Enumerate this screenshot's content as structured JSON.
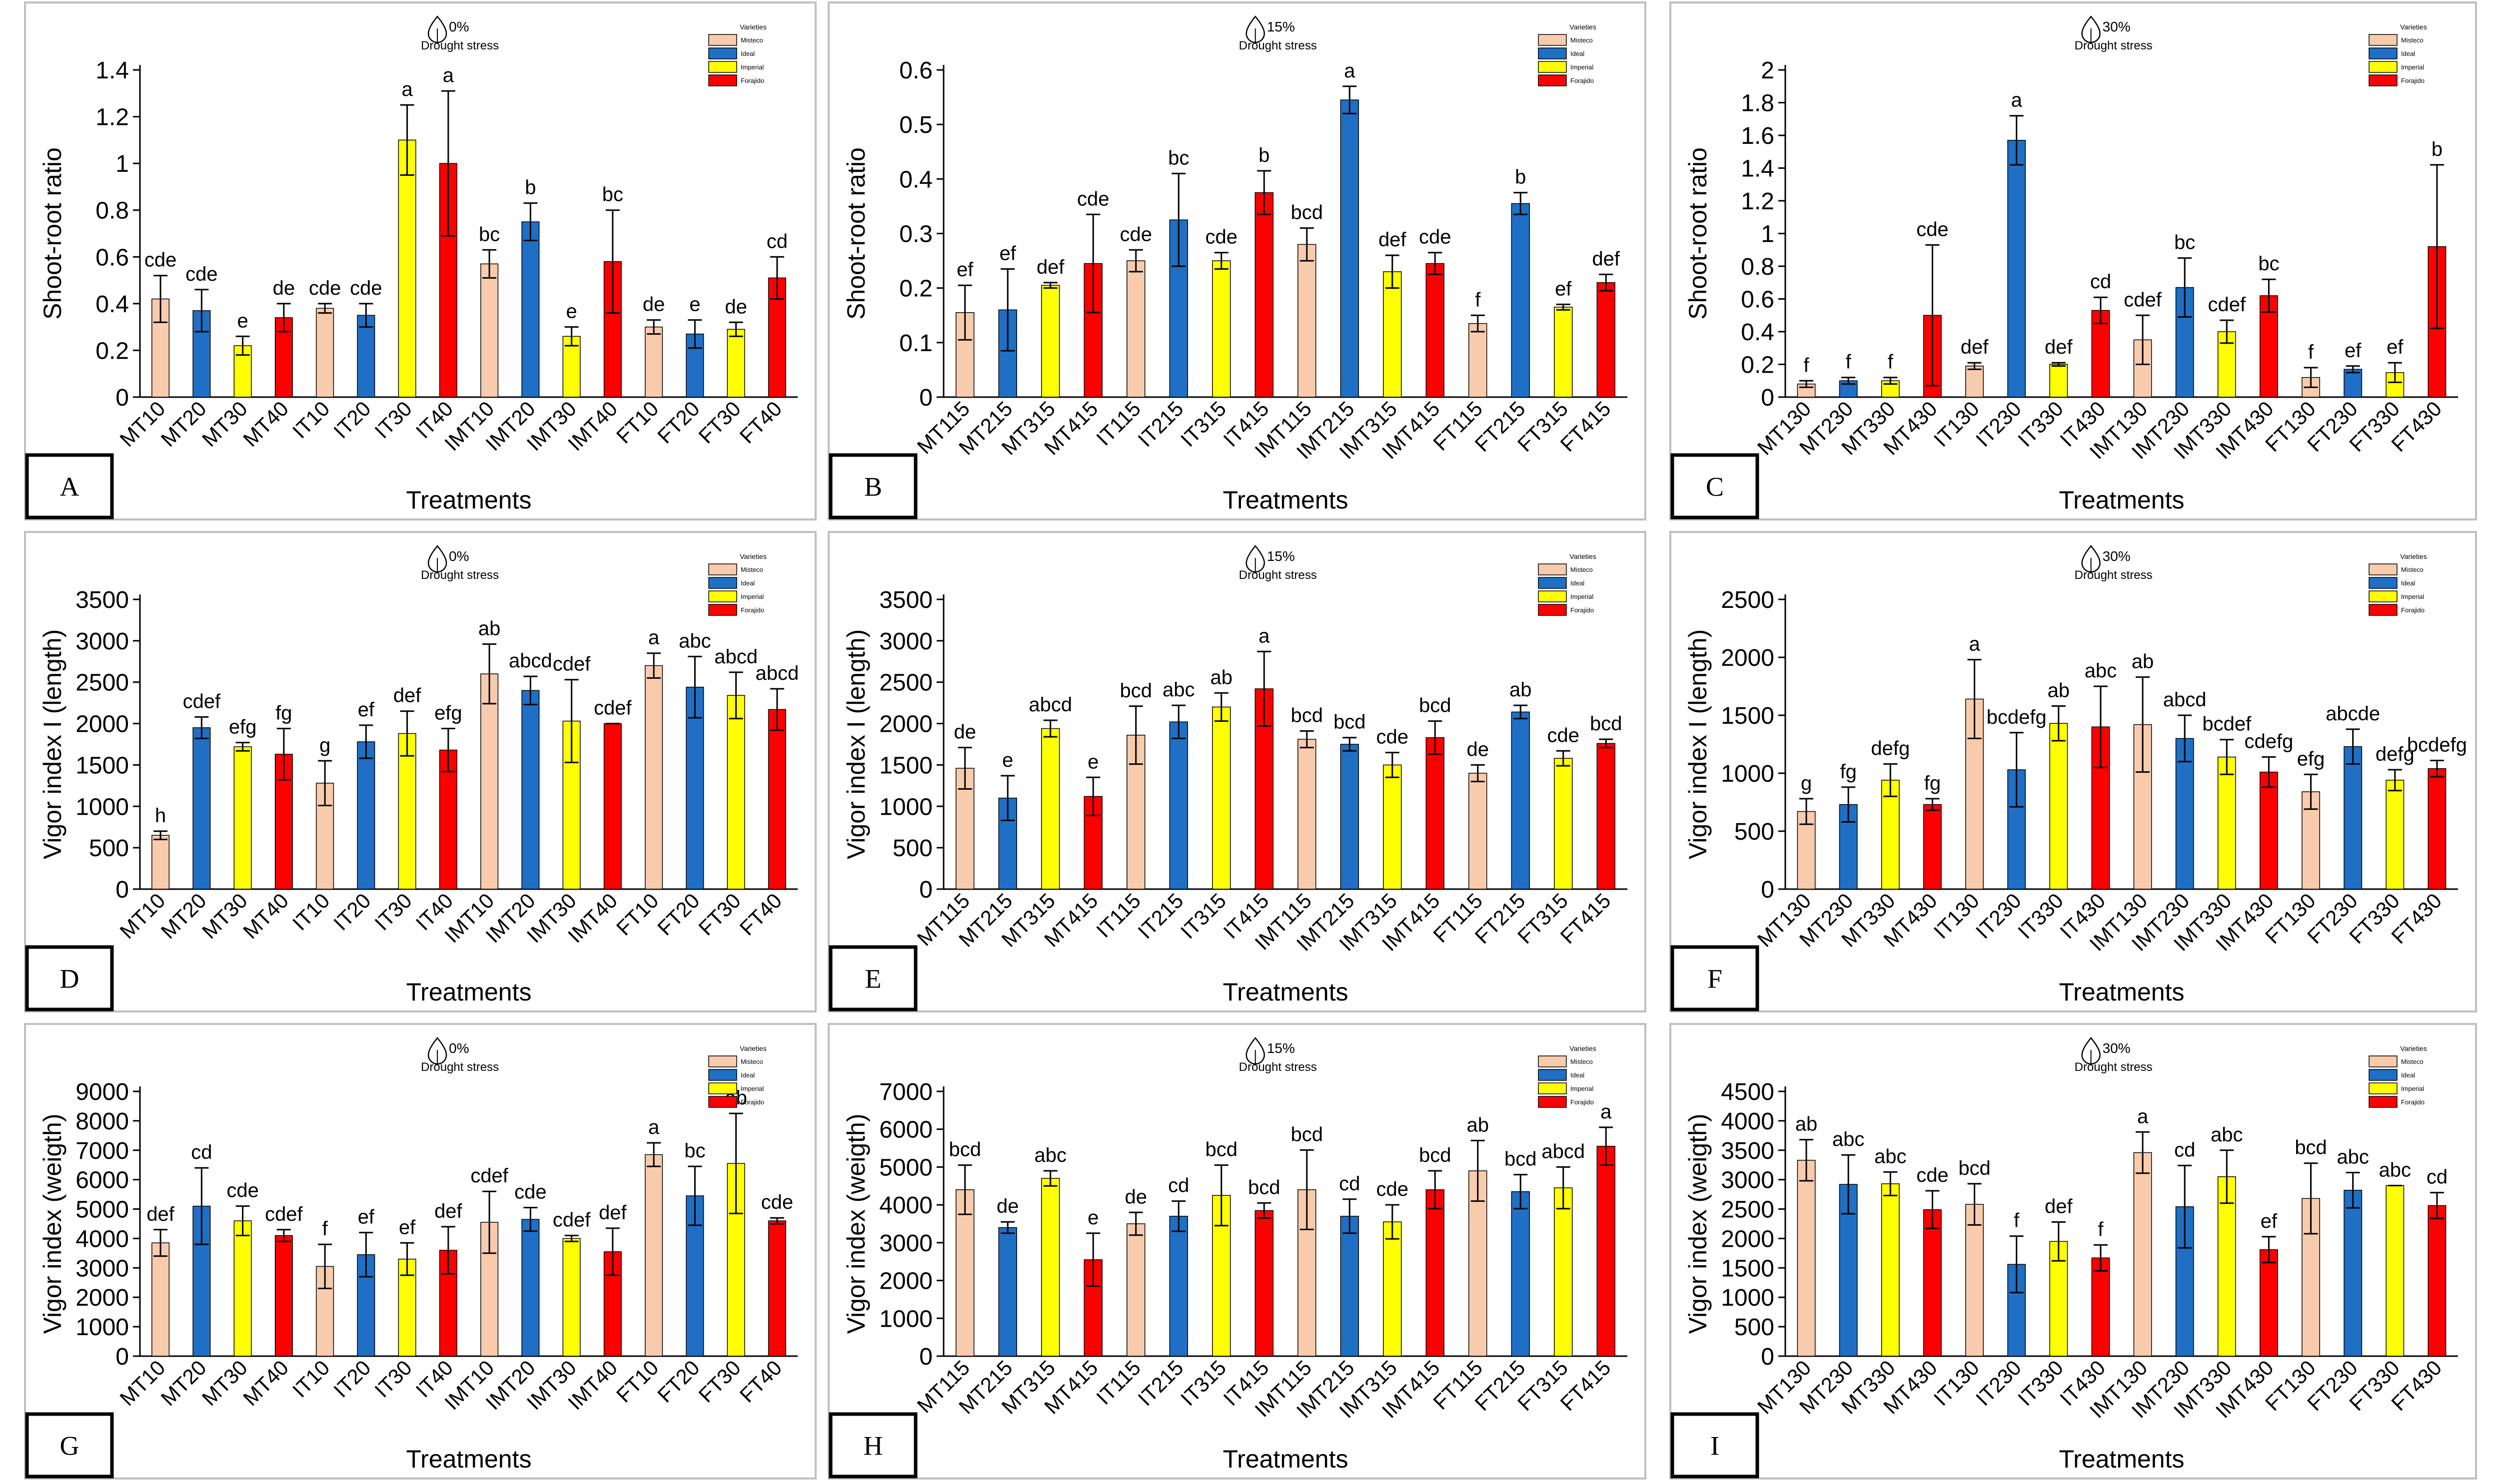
{
  "figure": {
    "xlabel": "Treatments",
    "legend_title": "Varieties",
    "legend_items": [
      "Misteco",
      "Ideal",
      "Imperial",
      "Forajido"
    ],
    "stress_caption": "Drought stress",
    "colors": {
      "Misteco": "#F8CBAD",
      "Ideal": "#1F6FC5",
      "Imperial": "#FFFF00",
      "Forajido": "#FF0000"
    },
    "color_order": [
      "Misteco",
      "Ideal",
      "Imperial",
      "Forajido",
      "Misteco",
      "Ideal",
      "Imperial",
      "Forajido",
      "Misteco",
      "Ideal",
      "Imperial",
      "Forajido",
      "Misteco",
      "Ideal",
      "Imperial",
      "Forajido"
    ],
    "icon": "water-drop-icon"
  },
  "chart_data": [
    {
      "panel": "A",
      "type": "bar",
      "stress": "0%",
      "ylabel": "Shoot-root ratio",
      "ylim": [
        0,
        1.4
      ],
      "yticks": [
        0,
        0.2,
        0.4,
        0.6,
        0.8,
        1,
        1.2,
        1.4
      ],
      "categories": [
        "MT10",
        "MT20",
        "MT30",
        "MT40",
        "IT10",
        "IT20",
        "IT30",
        "IT40",
        "IMT10",
        "IMT20",
        "IMT30",
        "IMT40",
        "FT10",
        "FT20",
        "FT30",
        "FT40"
      ],
      "values": [
        0.42,
        0.37,
        0.22,
        0.34,
        0.38,
        0.35,
        1.1,
        1.0,
        0.57,
        0.75,
        0.26,
        0.58,
        0.3,
        0.27,
        0.29,
        0.51
      ],
      "errors": [
        0.1,
        0.09,
        0.04,
        0.06,
        0.02,
        0.05,
        0.15,
        0.31,
        0.06,
        0.08,
        0.04,
        0.22,
        0.03,
        0.06,
        0.03,
        0.09
      ],
      "labels": [
        "cde",
        "cde",
        "e",
        "de",
        "cde",
        "cde",
        "a",
        "a",
        "bc",
        "b",
        "e",
        "bc",
        "de",
        "e",
        "de",
        "cd"
      ]
    },
    {
      "panel": "B",
      "type": "bar",
      "stress": "15%",
      "ylabel": "Shoot-root ratio",
      "ylim": [
        0,
        0.6
      ],
      "yticks": [
        0,
        0.1,
        0.2,
        0.3,
        0.4,
        0.5,
        0.6
      ],
      "categories": [
        "MT115",
        "MT215",
        "MT315",
        "MT415",
        "IT115",
        "IT215",
        "IT315",
        "IT415",
        "IMT115",
        "IMT215",
        "IMT315",
        "IMT415",
        "FT115",
        "FT215",
        "FT315",
        "FT415"
      ],
      "values": [
        0.155,
        0.16,
        0.205,
        0.245,
        0.25,
        0.325,
        0.25,
        0.375,
        0.28,
        0.545,
        0.23,
        0.245,
        0.135,
        0.355,
        0.165,
        0.21
      ],
      "errors": [
        0.05,
        0.075,
        0.005,
        0.09,
        0.02,
        0.085,
        0.015,
        0.04,
        0.03,
        0.025,
        0.03,
        0.02,
        0.015,
        0.02,
        0.005,
        0.015
      ],
      "labels": [
        "ef",
        "ef",
        "def",
        "cde",
        "cde",
        "bc",
        "cde",
        "b",
        "bcd",
        "a",
        "def",
        "cde",
        "f",
        "b",
        "ef",
        "def"
      ]
    },
    {
      "panel": "C",
      "type": "bar",
      "stress": "30%",
      "ylabel": "Shoot-root ratio",
      "ylim": [
        0,
        2
      ],
      "yticks": [
        0,
        0.2,
        0.4,
        0.6,
        0.8,
        1,
        1.2,
        1.4,
        1.6,
        1.8,
        2
      ],
      "categories": [
        "MT130",
        "MT230",
        "MT330",
        "MT430",
        "IT130",
        "IT230",
        "IT330",
        "IT430",
        "IMT130",
        "IMT230",
        "IMT330",
        "IMT430",
        "FT130",
        "FT230",
        "FT330",
        "FT430"
      ],
      "values": [
        0.08,
        0.1,
        0.1,
        0.5,
        0.19,
        1.57,
        0.2,
        0.53,
        0.35,
        0.67,
        0.4,
        0.62,
        0.12,
        0.17,
        0.15,
        0.92
      ],
      "errors": [
        0.02,
        0.02,
        0.02,
        0.43,
        0.02,
        0.15,
        0.01,
        0.08,
        0.15,
        0.18,
        0.07,
        0.1,
        0.06,
        0.02,
        0.06,
        0.5
      ],
      "labels": [
        "f",
        "f",
        "f",
        "cde",
        "def",
        "a",
        "def",
        "cd",
        "cdef",
        "bc",
        "cdef",
        "bc",
        "f",
        "ef",
        "ef",
        "b"
      ]
    },
    {
      "panel": "D",
      "type": "bar",
      "stress": "0%",
      "ylabel": "Vigor index I (length)",
      "ylim": [
        0,
        3500
      ],
      "yticks": [
        0,
        500,
        1000,
        1500,
        2000,
        2500,
        3000,
        3500
      ],
      "categories": [
        "MT10",
        "MT20",
        "MT30",
        "MT40",
        "IT10",
        "IT20",
        "IT30",
        "IT40",
        "IMT10",
        "IMT20",
        "IMT30",
        "IMT40",
        "FT10",
        "FT20",
        "FT30",
        "FT40"
      ],
      "values": [
        650,
        1950,
        1720,
        1630,
        1280,
        1780,
        1880,
        1680,
        2600,
        2400,
        2030,
        2000,
        2700,
        2440,
        2340,
        2170
      ],
      "errors": [
        50,
        130,
        50,
        310,
        270,
        200,
        270,
        260,
        360,
        170,
        500,
        0,
        150,
        370,
        280,
        250
      ],
      "labels": [
        "h",
        "cdef",
        "efg",
        "fg",
        "g",
        "ef",
        "def",
        "efg",
        "ab",
        "abcd",
        "cdef",
        "cdef",
        "a",
        "abc",
        "abcd",
        "abcd"
      ]
    },
    {
      "panel": "E",
      "type": "bar",
      "stress": "15%",
      "ylabel": "Vigor index I (length)",
      "ylim": [
        0,
        3500
      ],
      "yticks": [
        0,
        500,
        1000,
        1500,
        2000,
        2500,
        3000,
        3500
      ],
      "categories": [
        "MT115",
        "MT215",
        "MT315",
        "MT415",
        "IT115",
        "IT215",
        "IT315",
        "IT415",
        "IMT115",
        "IMT215",
        "IMT315",
        "IMT415",
        "FT115",
        "FT215",
        "FT315",
        "FT415"
      ],
      "values": [
        1460,
        1100,
        1940,
        1120,
        1860,
        2020,
        2200,
        2420,
        1810,
        1750,
        1500,
        1830,
        1400,
        2140,
        1580,
        1760
      ],
      "errors": [
        250,
        270,
        100,
        230,
        350,
        200,
        170,
        450,
        100,
        80,
        150,
        200,
        100,
        80,
        90,
        50
      ],
      "labels": [
        "de",
        "e",
        "abcd",
        "e",
        "bcd",
        "abc",
        "ab",
        "a",
        "bcd",
        "bcd",
        "cde",
        "bcd",
        "de",
        "ab",
        "cde",
        "bcd"
      ]
    },
    {
      "panel": "F",
      "type": "bar",
      "stress": "30%",
      "ylabel": "Vigor index I (length)",
      "ylim": [
        0,
        2500
      ],
      "yticks": [
        0,
        500,
        1000,
        1500,
        2000,
        2500
      ],
      "categories": [
        "MT130",
        "MT230",
        "MT330",
        "MT430",
        "IT130",
        "IT230",
        "IT330",
        "IT430",
        "IMT130",
        "IMT230",
        "IMT330",
        "IMT430",
        "FT130",
        "FT230",
        "FT330",
        "FT430"
      ],
      "values": [
        670,
        730,
        940,
        730,
        1640,
        1030,
        1430,
        1400,
        1420,
        1300,
        1140,
        1010,
        840,
        1230,
        940,
        1040
      ],
      "errors": [
        110,
        150,
        140,
        50,
        340,
        320,
        150,
        350,
        410,
        200,
        150,
        130,
        150,
        150,
        90,
        70
      ],
      "labels": [
        "g",
        "fg",
        "defg",
        "fg",
        "a",
        "bcdefg",
        "ab",
        "abc",
        "ab",
        "abcd",
        "bcdef",
        "cdefg",
        "efg",
        "abcde",
        "defg",
        "bcdefg"
      ]
    },
    {
      "panel": "G",
      "type": "bar",
      "stress": "0%",
      "ylabel": "Vigor index (weigth)",
      "ylim": [
        0,
        9000
      ],
      "yticks": [
        0,
        1000,
        2000,
        3000,
        4000,
        5000,
        6000,
        7000,
        8000,
        9000
      ],
      "categories": [
        "MT10",
        "MT20",
        "MT30",
        "MT40",
        "IT10",
        "IT20",
        "IT30",
        "IT40",
        "IMT10",
        "IMT20",
        "IMT30",
        "IMT40",
        "FT10",
        "FT20",
        "FT30",
        "FT40"
      ],
      "values": [
        3850,
        5100,
        4600,
        4100,
        3050,
        3450,
        3300,
        3600,
        4550,
        4650,
        4000,
        3550,
        6850,
        5450,
        6550,
        4600
      ],
      "errors": [
        450,
        1300,
        500,
        200,
        750,
        750,
        550,
        800,
        1050,
        400,
        100,
        800,
        400,
        1000,
        1700,
        100
      ],
      "labels": [
        "def",
        "cd",
        "cde",
        "cdef",
        "f",
        "ef",
        "ef",
        "def",
        "cdef",
        "cde",
        "cdef",
        "def",
        "a",
        "bc",
        "ab",
        "cde"
      ]
    },
    {
      "panel": "H",
      "type": "bar",
      "stress": "15%",
      "ylabel": "Vigor index (weigth)",
      "ylim": [
        0,
        7000
      ],
      "yticks": [
        0,
        1000,
        2000,
        3000,
        4000,
        5000,
        6000,
        7000
      ],
      "categories": [
        "MT115",
        "MT215",
        "MT315",
        "MT415",
        "IT115",
        "IT215",
        "IT315",
        "IT415",
        "IMT115",
        "IMT215",
        "IMT315",
        "IMT415",
        "FT115",
        "FT215",
        "FT315",
        "FT415"
      ],
      "values": [
        4400,
        3400,
        4700,
        2550,
        3500,
        3700,
        4250,
        3850,
        4400,
        3700,
        3550,
        4400,
        4900,
        4350,
        4450,
        5550
      ],
      "errors": [
        650,
        150,
        200,
        700,
        300,
        400,
        800,
        200,
        1050,
        450,
        450,
        500,
        800,
        450,
        550,
        500
      ],
      "labels": [
        "bcd",
        "de",
        "abc",
        "e",
        "de",
        "cd",
        "bcd",
        "bcd",
        "bcd",
        "cd",
        "cde",
        "bcd",
        "ab",
        "bcd",
        "abcd",
        "a"
      ]
    },
    {
      "panel": "I",
      "type": "bar",
      "stress": "30%",
      "ylabel": "Vigor index (weigth)",
      "ylim": [
        0,
        4500
      ],
      "yticks": [
        0,
        500,
        1000,
        1500,
        2000,
        2500,
        3000,
        3500,
        4000,
        4500
      ],
      "categories": [
        "MT130",
        "MT230",
        "MT330",
        "MT430",
        "IT130",
        "IT230",
        "IT330",
        "IT430",
        "IMT130",
        "IMT230",
        "IMT330",
        "IMT430",
        "FT130",
        "FT230",
        "FT330",
        "FT430"
      ],
      "values": [
        3330,
        2920,
        2930,
        2490,
        2580,
        1560,
        1950,
        1670,
        3460,
        2540,
        3050,
        1810,
        2680,
        2820,
        2900,
        2560
      ],
      "errors": [
        350,
        500,
        200,
        320,
        350,
        480,
        330,
        220,
        350,
        700,
        450,
        220,
        600,
        300,
        0,
        220
      ],
      "labels": [
        "ab",
        "abc",
        "abc",
        "cde",
        "bcd",
        "f",
        "def",
        "f",
        "a",
        "cd",
        "abc",
        "ef",
        "bcd",
        "abc",
        "abc",
        "cd"
      ]
    }
  ],
  "panels": [
    {
      "letter": "A",
      "stress": "0%"
    },
    {
      "letter": "B",
      "stress": "15%"
    },
    {
      "letter": "C",
      "stress": "30%"
    },
    {
      "letter": "D",
      "stress": "0%"
    },
    {
      "letter": "E",
      "stress": "15%"
    },
    {
      "letter": "F",
      "stress": "30%"
    },
    {
      "letter": "G",
      "stress": "0%"
    },
    {
      "letter": "H",
      "stress": "15%"
    },
    {
      "letter": "I",
      "stress": "30%"
    }
  ]
}
